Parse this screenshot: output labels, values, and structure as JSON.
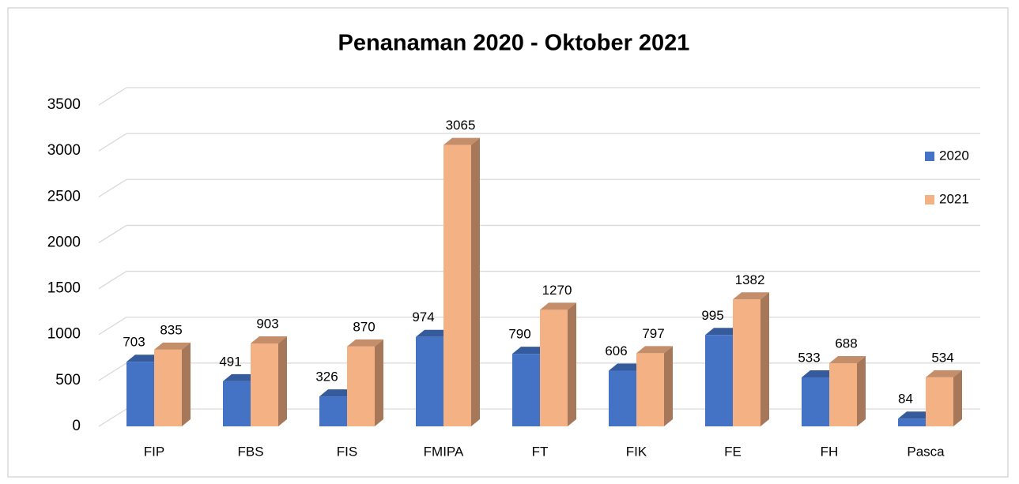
{
  "chart_data": {
    "type": "bar3d",
    "title": "Penanaman 2020 - Oktober 2021",
    "categories": [
      "FIP",
      "FBS",
      "FIS",
      "FMIPA",
      "FT",
      "FIK",
      "FE",
      "FH",
      "Pasca"
    ],
    "series": [
      {
        "name": "2020",
        "color": "#4472c4",
        "values": [
          703,
          491,
          326,
          974,
          790,
          606,
          995,
          533,
          84
        ]
      },
      {
        "name": "2021",
        "color": "#f4b183",
        "values": [
          835,
          903,
          870,
          3065,
          1270,
          797,
          1382,
          688,
          534
        ]
      }
    ],
    "ylim": [
      0,
      3500
    ],
    "yticks": [
      0,
      500,
      1000,
      1500,
      2000,
      2500,
      3000,
      3500
    ],
    "grid": true,
    "legend": "right"
  }
}
